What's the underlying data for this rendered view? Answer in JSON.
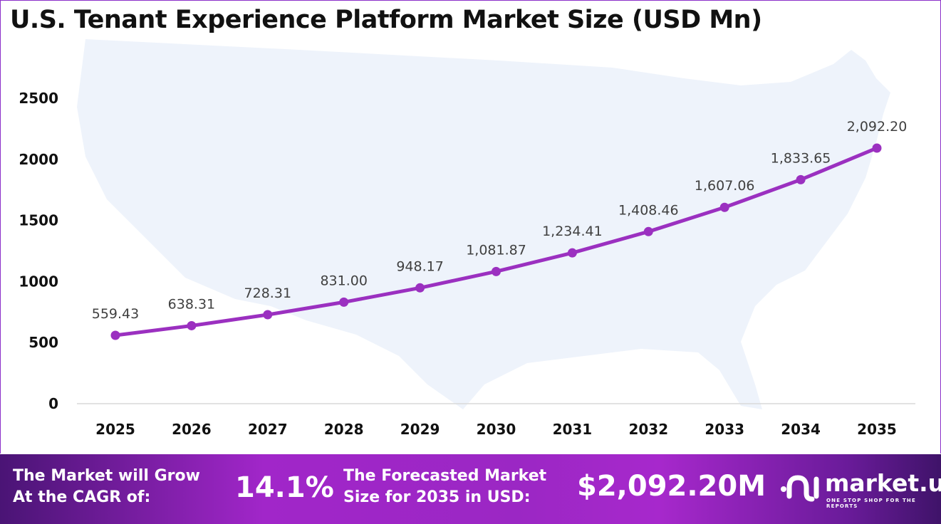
{
  "chart_data": {
    "type": "line",
    "title": "U.S. Tenant Experience Platform Market Size (USD Mn)",
    "categories": [
      "2025",
      "2026",
      "2027",
      "2028",
      "2029",
      "2030",
      "2031",
      "2032",
      "2033",
      "2034",
      "2035"
    ],
    "values": [
      559.43,
      638.31,
      728.31,
      831.0,
      948.17,
      1081.87,
      1234.41,
      1408.46,
      1607.06,
      1833.65,
      2092.2
    ],
    "data_labels": [
      "559.43",
      "638.31",
      "728.31",
      "831.00",
      "948.17",
      "1,081.87",
      "1,234.41",
      "1,408.46",
      "1,607.06",
      "1,833.65",
      "2,092.20"
    ],
    "yticks": [
      "0",
      "500",
      "1000",
      "1500",
      "2000",
      "2500"
    ],
    "ylim": [
      0,
      2500
    ],
    "grid": false,
    "line_color": "#9b30c0",
    "background_map": "usa-map"
  },
  "footer": {
    "cagr_label_1": "The Market will Grow",
    "cagr_label_2": "At the CAGR of:",
    "cagr_value": "14.1%",
    "forecast_label_1": "The Forecasted Market",
    "forecast_label_2": "Size for 2035 in USD:",
    "forecast_value": "$2,092.20M",
    "logo_name": "market.us",
    "logo_tagline": "ONE STOP SHOP FOR THE REPORTS"
  }
}
